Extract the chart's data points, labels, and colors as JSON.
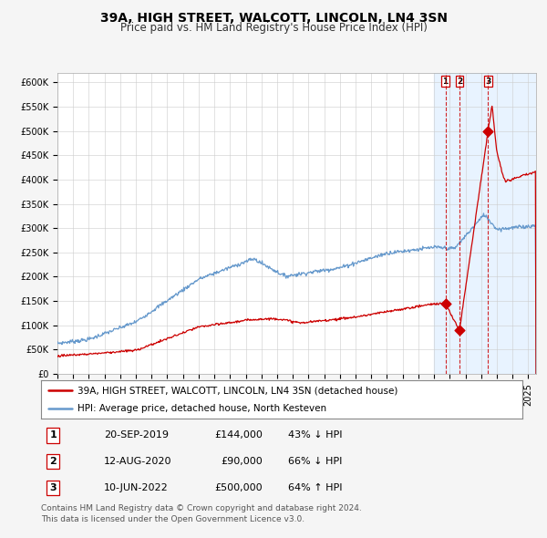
{
  "title": "39A, HIGH STREET, WALCOTT, LINCOLN, LN4 3SN",
  "subtitle": "Price paid vs. HM Land Registry's House Price Index (HPI)",
  "legend_red": "39A, HIGH STREET, WALCOTT, LINCOLN, LN4 3SN (detached house)",
  "legend_blue": "HPI: Average price, detached house, North Kesteven",
  "footnote": "Contains HM Land Registry data © Crown copyright and database right 2024.\nThis data is licensed under the Open Government Licence v3.0.",
  "transactions": [
    {
      "num": 1,
      "date": "20-SEP-2019",
      "price": 144000,
      "pct": "43%",
      "dir": "↓",
      "x_year": 2019.72
    },
    {
      "num": 2,
      "date": "12-AUG-2020",
      "price": 90000,
      "pct": "66%",
      "dir": "↓",
      "x_year": 2020.62
    },
    {
      "num": 3,
      "date": "10-JUN-2022",
      "price": 500000,
      "pct": "64%",
      "dir": "↑",
      "x_year": 2022.44
    }
  ],
  "xlim": [
    1995.0,
    2025.5
  ],
  "ylim": [
    0,
    620000
  ],
  "yticks": [
    0,
    50000,
    100000,
    150000,
    200000,
    250000,
    300000,
    350000,
    400000,
    450000,
    500000,
    550000,
    600000
  ],
  "ytick_labels": [
    "£0",
    "£50K",
    "£100K",
    "£150K",
    "£200K",
    "£250K",
    "£300K",
    "£350K",
    "£400K",
    "£450K",
    "£500K",
    "£550K",
    "£600K"
  ],
  "bg_color": "#f5f5f5",
  "plot_bg": "#ffffff",
  "red_color": "#cc0000",
  "blue_color": "#6699cc",
  "highlight_bg": "#ddeeff",
  "title_fontsize": 10,
  "subtitle_fontsize": 8.5,
  "tick_fontsize": 7,
  "legend_fontsize": 7.5,
  "table_fontsize": 8,
  "footnote_fontsize": 6.5
}
